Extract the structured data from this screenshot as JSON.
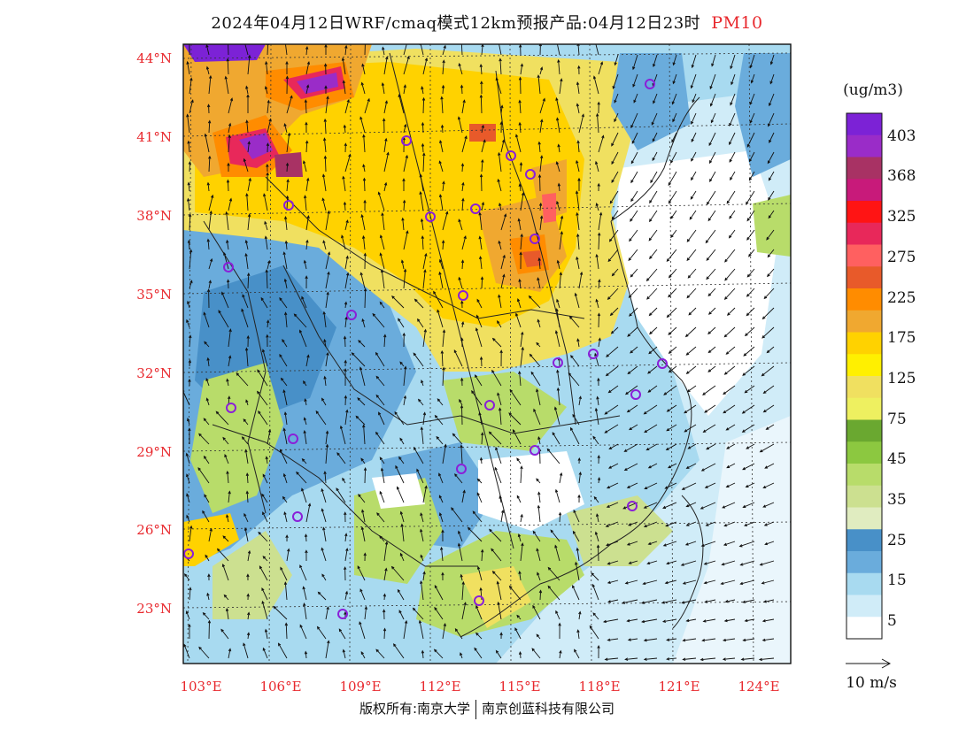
{
  "title": {
    "main": "2024年04月12日WRF/cmaq模式12km预报产品:04月12日23时",
    "variable": "PM10",
    "variable_color": "#e8282d"
  },
  "map": {
    "lat_labels": [
      "44°N",
      "41°N",
      "38°N",
      "35°N",
      "32°N",
      "29°N",
      "26°N",
      "23°N"
    ],
    "lon_labels": [
      "103°E",
      "106°E",
      "109°E",
      "112°E",
      "115°E",
      "118°E",
      "121°E",
      "124°E"
    ],
    "lat_values": [
      44,
      41,
      38,
      35,
      32,
      29,
      26,
      23
    ],
    "lon_values": [
      103,
      106,
      109,
      112,
      115,
      118,
      121,
      124
    ],
    "label_color": "#e8282d",
    "station_marker_color": "#8a1fd8",
    "station_count": 25
  },
  "legend": {
    "unit": "(ug/m3)",
    "labels": [
      "403",
      "368",
      "325",
      "275",
      "225",
      "175",
      "125",
      "75",
      "45",
      "35",
      "25",
      "15",
      "5"
    ],
    "colors": [
      "#7c22d6",
      "#9a2cc8",
      "#a83264",
      "#c81a7a",
      "#ff1414",
      "#e8285a",
      "#ff6060",
      "#e85a2a",
      "#ff8c00",
      "#f0a830",
      "#ffd200",
      "#fff000",
      "#f0e060",
      "#eef060",
      "#6aa830",
      "#8cc840",
      "#b8dc6a",
      "#cce090",
      "#e0ecc0",
      "#4890c8",
      "#6aacdc",
      "#a8daf0",
      "#d0ecf8",
      "#ffffff"
    ]
  },
  "wind_scale": {
    "label": "10 m/s"
  },
  "copyright": {
    "left": "版权所有:南京大学",
    "right": "南京创蓝科技有限公司"
  }
}
